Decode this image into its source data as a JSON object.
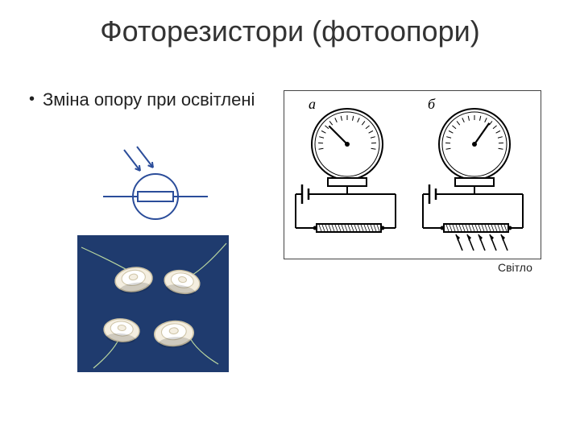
{
  "title": "Фоторезистори (фотоопори)",
  "bullet": "Зміна опору при освітлені",
  "light_label": "Світло",
  "symbol": {
    "stroke": "#2b4d9a",
    "stroke_width": 2,
    "circle_r": 28,
    "rect_w": 44,
    "rect_h": 12,
    "arrow_len": 26
  },
  "diagram": {
    "type": "infographic",
    "panels": [
      "а",
      "б"
    ],
    "needle_angle_a": -45,
    "needle_angle_b": 35,
    "gauge_r": 40,
    "stroke": "#000000",
    "stroke_width": 2,
    "light_arrows_panel": "б"
  },
  "photo": {
    "type": "natural-image",
    "background": "#1f3b6e",
    "component_fill": "#f4eee0",
    "component_edge": "#cfc5a8",
    "wire_color": "#b9d6a0",
    "count": 4
  }
}
